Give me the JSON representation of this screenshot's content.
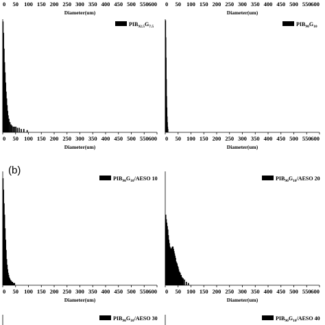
{
  "panel_labels": [
    "(b)"
  ],
  "chart_data": [
    {
      "id": "top-left",
      "type": "bar",
      "xlabel": "Diameter(um)",
      "x_ticks": [
        0,
        50,
        100,
        150,
        200,
        250,
        300,
        350,
        400,
        450,
        500,
        550,
        600
      ],
      "xlim": [
        0,
        600
      ],
      "ylim": [
        0,
        100
      ],
      "legend": {
        "base": "PIB",
        "sub1": "92.5",
        "mid": "G",
        "sub2": "7.5",
        "suffix": ""
      },
      "legend_position": "top-right",
      "x": [
        1,
        3,
        5,
        7,
        9,
        11,
        13,
        15,
        17,
        19,
        21,
        24,
        28,
        32,
        36,
        41,
        46,
        51,
        57,
        64,
        72,
        82,
        95
      ],
      "values": [
        98,
        88,
        74,
        62,
        53,
        44,
        36,
        30,
        24,
        19,
        15,
        12,
        9,
        7,
        6,
        5,
        5,
        5,
        4,
        4,
        3,
        3,
        2
      ]
    },
    {
      "id": "top-right",
      "type": "bar",
      "xlabel": "Diameter(um)",
      "x_ticks": [
        0,
        50,
        100,
        150,
        200,
        250,
        300,
        350,
        400,
        450,
        500,
        550,
        600
      ],
      "xlim": [
        0,
        600
      ],
      "ylim": [
        0,
        100
      ],
      "legend": {
        "base": "PIB",
        "sub1": "90",
        "mid": "G",
        "sub2": "10",
        "suffix": ""
      },
      "legend_position": "top-right",
      "x": [
        1,
        2,
        3,
        4,
        5,
        6,
        7,
        8,
        9,
        10
      ],
      "values": [
        99,
        84,
        66,
        47,
        32,
        22,
        14,
        9,
        5,
        3
      ]
    },
    {
      "id": "bottom-left",
      "type": "bar",
      "xlabel": "Diameter(um)",
      "x_ticks": [
        0,
        50,
        100,
        150,
        200,
        250,
        300,
        350,
        400,
        450,
        500,
        550,
        600
      ],
      "xlim": [
        0,
        600
      ],
      "ylim": [
        0,
        100
      ],
      "legend": {
        "base": "PIB",
        "sub1": "90",
        "mid": "G",
        "sub2": "10",
        "suffix": "/AESO 10"
      },
      "legend_position": "top-right",
      "x": [
        1,
        3,
        5,
        7,
        9,
        11,
        13,
        15,
        17,
        19,
        21,
        23,
        25,
        27,
        29,
        31,
        33,
        35,
        38,
        42,
        46
      ],
      "values": [
        94,
        84,
        72,
        62,
        50,
        40,
        31,
        23,
        18,
        14,
        11,
        9,
        7,
        6,
        5,
        4,
        4,
        3,
        3,
        2,
        2
      ]
    },
    {
      "id": "bottom-right",
      "type": "bar",
      "xlabel": "Diameter(um)",
      "x_ticks": [
        0,
        50,
        100,
        150,
        200,
        250,
        300,
        350,
        400,
        450,
        500,
        550,
        600
      ],
      "xlim": [
        0,
        600
      ],
      "ylim": [
        0,
        100
      ],
      "legend": {
        "base": "PIB",
        "sub1": "90",
        "mid": "G",
        "sub2": "10",
        "suffix": "/AESO 20"
      },
      "legend_position": "top-right",
      "x": [
        2,
        4,
        6,
        8,
        10,
        12,
        14,
        16,
        18,
        20,
        22,
        24,
        26,
        28,
        30,
        32,
        34,
        36,
        38,
        40,
        42,
        44,
        46,
        48,
        50,
        52,
        55,
        58,
        62,
        66,
        70,
        75,
        82,
        90
      ],
      "values": [
        62,
        58,
        55,
        52,
        49,
        44,
        40,
        37,
        34,
        33,
        32,
        32,
        33,
        34,
        34,
        32,
        30,
        28,
        26,
        24,
        21,
        20,
        19,
        17,
        16,
        14,
        12,
        11,
        9,
        7,
        6,
        5,
        3,
        2
      ]
    }
  ],
  "bottom_legends": [
    {
      "base": "PIB",
      "sub1": "90",
      "mid": "G",
      "sub2": "10",
      "suffix": "/AESO 30"
    },
    {
      "base": "PIB",
      "sub1": "90",
      "mid": "G",
      "sub2": "10",
      "suffix": "/AESO 40"
    }
  ],
  "top_axis_ticks": [
    0,
    50,
    100,
    150,
    200,
    250,
    300,
    350,
    400,
    450,
    500,
    550,
    600
  ],
  "top_axis_label": "Diameter(um)"
}
